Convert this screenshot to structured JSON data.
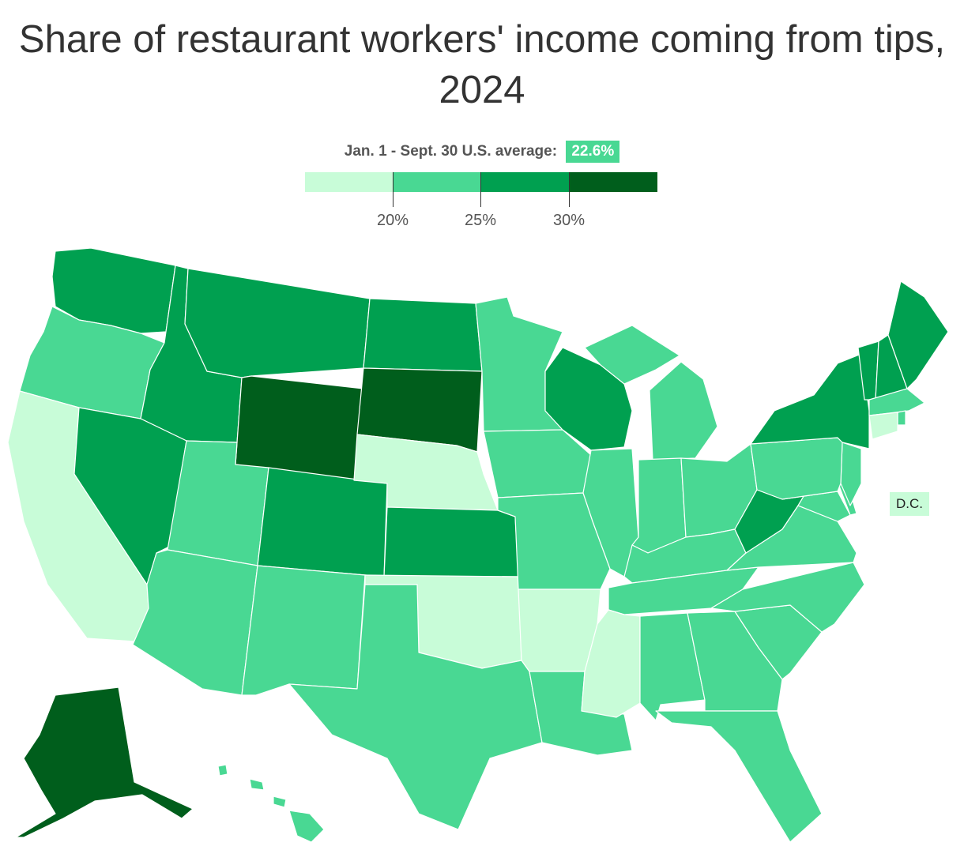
{
  "title": "Share of restaurant workers' income coming from tips, 2024",
  "legend": {
    "average_label": "Jan. 1 - Sept. 30 U.S. average:",
    "average_value": "22.6%",
    "bins": [
      {
        "range": "below 20%",
        "color": "#c8fcd8"
      },
      {
        "range": "20% to 25%",
        "color": "#49d893"
      },
      {
        "range": "25% to 30%",
        "color": "#00a050"
      },
      {
        "range": "30% and above",
        "color": "#005e1c"
      }
    ],
    "ticks": [
      "20%",
      "25%",
      "30%"
    ]
  },
  "dc": {
    "label": "D.C.",
    "color": "#c8fcd8"
  },
  "states": [
    {
      "name": "Washington",
      "bin": 2
    },
    {
      "name": "Oregon",
      "bin": 1
    },
    {
      "name": "California",
      "bin": 0
    },
    {
      "name": "Idaho",
      "bin": 2
    },
    {
      "name": "Nevada",
      "bin": 2
    },
    {
      "name": "Montana",
      "bin": 2
    },
    {
      "name": "Wyoming",
      "bin": 3
    },
    {
      "name": "Utah",
      "bin": 1
    },
    {
      "name": "Arizona",
      "bin": 1
    },
    {
      "name": "Colorado",
      "bin": 2
    },
    {
      "name": "New Mexico",
      "bin": 1
    },
    {
      "name": "North Dakota",
      "bin": 2
    },
    {
      "name": "South Dakota",
      "bin": 3
    },
    {
      "name": "Nebraska",
      "bin": 0
    },
    {
      "name": "Kansas",
      "bin": 2
    },
    {
      "name": "Oklahoma",
      "bin": 0
    },
    {
      "name": "Texas",
      "bin": 1
    },
    {
      "name": "Minnesota",
      "bin": 1
    },
    {
      "name": "Iowa",
      "bin": 1
    },
    {
      "name": "Missouri",
      "bin": 1
    },
    {
      "name": "Arkansas",
      "bin": 0
    },
    {
      "name": "Louisiana",
      "bin": 1
    },
    {
      "name": "Wisconsin",
      "bin": 2
    },
    {
      "name": "Illinois",
      "bin": 1
    },
    {
      "name": "Michigan",
      "bin": 1
    },
    {
      "name": "Indiana",
      "bin": 1
    },
    {
      "name": "Ohio",
      "bin": 1
    },
    {
      "name": "Kentucky",
      "bin": 1
    },
    {
      "name": "Tennessee",
      "bin": 1
    },
    {
      "name": "Mississippi",
      "bin": 0
    },
    {
      "name": "Alabama",
      "bin": 1
    },
    {
      "name": "Georgia",
      "bin": 1
    },
    {
      "name": "Florida",
      "bin": 1
    },
    {
      "name": "South Carolina",
      "bin": 1
    },
    {
      "name": "North Carolina",
      "bin": 1
    },
    {
      "name": "Virginia",
      "bin": 1
    },
    {
      "name": "West Virginia",
      "bin": 2
    },
    {
      "name": "Maryland",
      "bin": 1
    },
    {
      "name": "Delaware",
      "bin": 1
    },
    {
      "name": "New Jersey",
      "bin": 1
    },
    {
      "name": "Pennsylvania",
      "bin": 1
    },
    {
      "name": "New York",
      "bin": 2
    },
    {
      "name": "Vermont",
      "bin": 2
    },
    {
      "name": "New Hampshire",
      "bin": 2
    },
    {
      "name": "Maine",
      "bin": 2
    },
    {
      "name": "Massachusetts",
      "bin": 1
    },
    {
      "name": "Rhode Island",
      "bin": 1
    },
    {
      "name": "Connecticut",
      "bin": 0
    },
    {
      "name": "Alaska",
      "bin": 3
    },
    {
      "name": "Hawaii",
      "bin": 1
    }
  ]
}
